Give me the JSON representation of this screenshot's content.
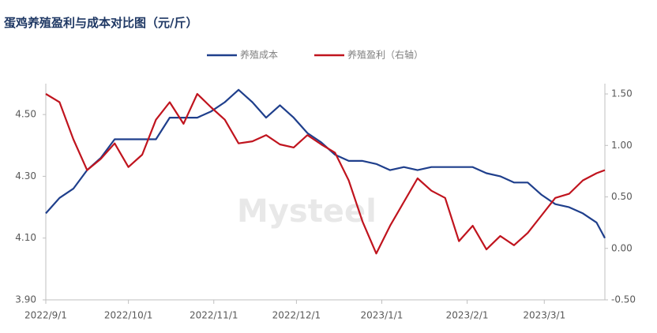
{
  "chart_data": {
    "type": "line",
    "title": "蛋鸡养殖盈利与成本对比图（元/斤）",
    "watermark": "Mysteel",
    "x": [
      "2022/9/1",
      "2022/9/6",
      "2022/9/11",
      "2022/9/16",
      "2022/9/21",
      "2022/9/26",
      "2022/10/1",
      "2022/10/6",
      "2022/10/11",
      "2022/10/16",
      "2022/10/21",
      "2022/10/26",
      "2022/10/31",
      "2022/11/5",
      "2022/11/10",
      "2022/11/15",
      "2022/11/20",
      "2022/11/25",
      "2022/11/30",
      "2022/12/5",
      "2022/12/10",
      "2022/12/15",
      "2022/12/20",
      "2022/12/25",
      "2022/12/30",
      "2023/1/4",
      "2023/1/9",
      "2023/1/14",
      "2023/1/19",
      "2023/1/24",
      "2023/1/29",
      "2023/2/3",
      "2023/2/8",
      "2023/2/13",
      "2023/2/18",
      "2023/2/23",
      "2023/2/28",
      "2023/3/5",
      "2023/3/10",
      "2023/3/15",
      "2023/3/20",
      "2023/3/23"
    ],
    "xlim": [
      "2022/9/1",
      "2023/3/23"
    ],
    "xticks": [
      "2022/9/1",
      "2022/10/1",
      "2022/11/1",
      "2022/12/1",
      "2023/1/1",
      "2023/2/1",
      "2023/3/1"
    ],
    "series": [
      {
        "name": "养殖成本",
        "color": "#1f3f8c",
        "values": [
          4.18,
          4.23,
          4.26,
          4.32,
          4.36,
          4.42,
          4.42,
          4.42,
          4.42,
          4.49,
          4.49,
          4.49,
          4.51,
          4.54,
          4.58,
          4.54,
          4.49,
          4.53,
          4.49,
          4.44,
          4.41,
          4.37,
          4.35,
          4.35,
          4.34,
          4.32,
          4.33,
          4.32,
          4.33,
          4.33,
          4.33,
          4.33,
          4.31,
          4.3,
          4.28,
          4.28,
          4.24,
          4.21,
          4.2,
          4.18,
          4.15,
          4.1
        ]
      },
      {
        "name": "养殖盈利（右轴）",
        "color": "#c0141e",
        "axis": "y2",
        "values": [
          1.5,
          1.42,
          1.06,
          0.76,
          0.87,
          1.02,
          0.79,
          0.91,
          1.25,
          1.42,
          1.21,
          1.5,
          1.37,
          1.25,
          1.02,
          1.04,
          1.1,
          1.01,
          0.98,
          1.1,
          1.01,
          0.93,
          0.66,
          0.26,
          -0.05,
          0.22,
          0.45,
          0.68,
          0.56,
          0.49,
          0.07,
          0.22,
          -0.01,
          0.12,
          0.03,
          0.15,
          0.32,
          0.49,
          0.53,
          0.66,
          0.73,
          0.76
        ]
      }
    ],
    "ylim": [
      3.9,
      4.6
    ],
    "yticks": [
      {
        "value": 3.9,
        "label": "3.90"
      },
      {
        "value": 4.1,
        "label": "4.10"
      },
      {
        "value": 4.3,
        "label": "4.30"
      },
      {
        "value": 4.5,
        "label": "4.50"
      }
    ],
    "y2lim": [
      -0.5,
      1.6
    ],
    "y2ticks": [
      {
        "value": -0.5,
        "label": "-0.50"
      },
      {
        "value": 0,
        "label": "0.00"
      },
      {
        "value": 0.5,
        "label": "0.50"
      },
      {
        "value": 1,
        "label": "1.00"
      },
      {
        "value": 1.5,
        "label": "1.50"
      }
    ],
    "grid": false
  }
}
